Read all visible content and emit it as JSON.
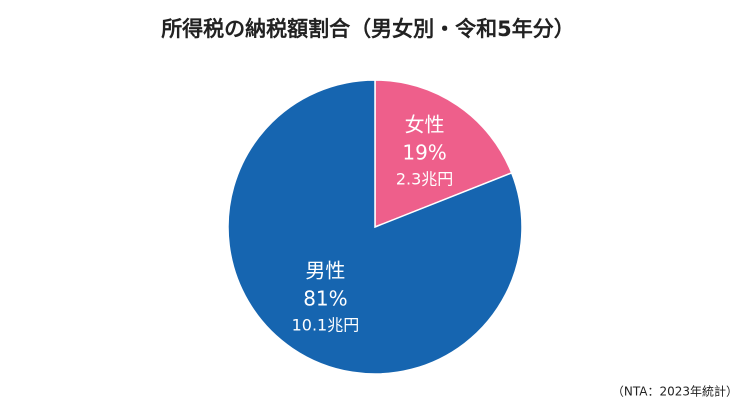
{
  "chart_data": {
    "type": "pie",
    "title": "所得税の納税額割合（男女別・令和5年分）",
    "categories": [
      "女性",
      "男性"
    ],
    "values": [
      19,
      81
    ],
    "value_labels": [
      "19%",
      "81%"
    ],
    "amount_labels": [
      "2.3兆円",
      "10.1兆円"
    ],
    "colors": [
      "#ee5f8b",
      "#1665b0"
    ],
    "source": "（NTA：2023年統計）"
  }
}
